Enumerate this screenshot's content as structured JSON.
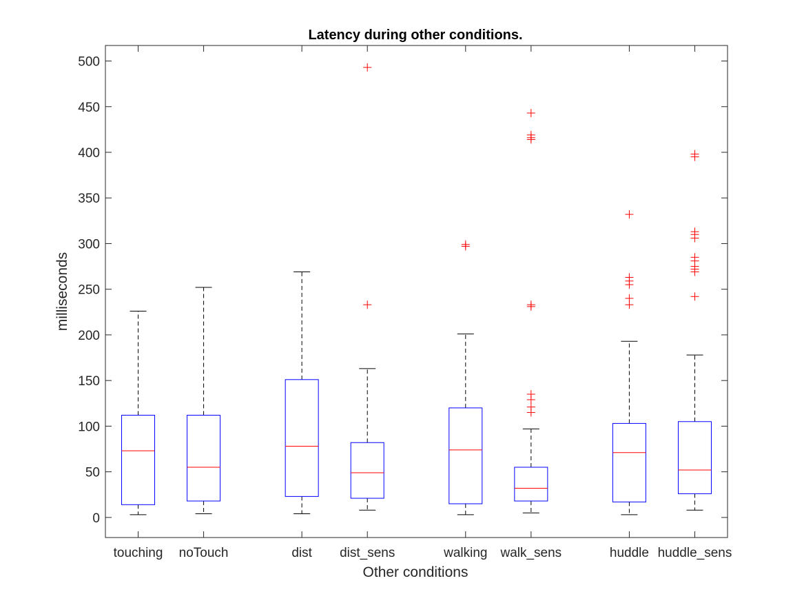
{
  "chart_data": {
    "type": "box",
    "title": "Latency during other conditions.",
    "xlabel": "Other conditions",
    "ylabel": "milliseconds",
    "ylim": [
      -22,
      517
    ],
    "yticks": [
      0,
      50,
      100,
      150,
      200,
      250,
      300,
      350,
      400,
      450,
      500
    ],
    "grid": false,
    "categories": [
      "touching",
      "noTouch",
      "dist",
      "dist_sens",
      "walking",
      "walk_sens",
      "huddle",
      "huddle_sens"
    ],
    "x_positions": [
      1,
      2,
      3.5,
      4.5,
      6,
      7,
      8.5,
      9.5
    ],
    "xlim": [
      0.5,
      10
    ],
    "boxes": [
      {
        "whisker_low": 3,
        "q1": 14,
        "median": 73,
        "q3": 112,
        "whisker_high": 226,
        "outliers": []
      },
      {
        "whisker_low": 4,
        "q1": 18,
        "median": 55,
        "q3": 112,
        "whisker_high": 252,
        "outliers": []
      },
      {
        "whisker_low": 4,
        "q1": 23,
        "median": 78,
        "q3": 151,
        "whisker_high": 269,
        "outliers": []
      },
      {
        "whisker_low": 8,
        "q1": 21,
        "median": 49,
        "q3": 82,
        "whisker_high": 163,
        "outliers": [
          233,
          493
        ]
      },
      {
        "whisker_low": 3,
        "q1": 15,
        "median": 74,
        "q3": 120,
        "whisker_high": 201,
        "outliers": [
          297,
          299
        ]
      },
      {
        "whisker_low": 5,
        "q1": 18,
        "median": 32,
        "q3": 55,
        "whisker_high": 97,
        "outliers": [
          115,
          121,
          129,
          135,
          231,
          233,
          414,
          416,
          419,
          443
        ]
      },
      {
        "whisker_low": 3,
        "q1": 17,
        "median": 71,
        "q3": 103,
        "whisker_high": 193,
        "outliers": [
          233,
          240,
          255,
          259,
          263,
          332
        ]
      },
      {
        "whisker_low": 8,
        "q1": 26,
        "median": 52,
        "q3": 105,
        "whisker_high": 178,
        "outliers": [
          242,
          269,
          272,
          275,
          281,
          285,
          306,
          310,
          313,
          395,
          398
        ]
      }
    ],
    "colors": {
      "box": "#0000ff",
      "median": "#ff0000",
      "whisker": "#000000",
      "outlier": "#ff0000",
      "axes": "#262626"
    }
  }
}
